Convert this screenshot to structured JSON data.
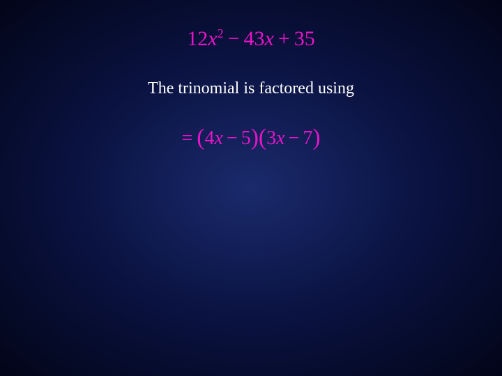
{
  "slide": {
    "background": {
      "gradient_center": "#1a2a6c",
      "gradient_mid": "#0a1240",
      "gradient_edge": "#020518"
    },
    "text_color": "#ffffff",
    "accent_color": "#e815c8",
    "trinomial": {
      "a_coef": "12",
      "a_var": "x",
      "a_exp": "2",
      "op1": "−",
      "b_coef": "43",
      "b_var": "x",
      "op2": "+",
      "c": "35",
      "fontsize": 30
    },
    "caption": {
      "text": "The trinomial is factored using",
      "fontsize": 24
    },
    "factored": {
      "eq": "=",
      "lp1": "(",
      "f1_coef": "4",
      "f1_var": "x",
      "f1_op": "−",
      "f1_const": "5",
      "rp1": ")",
      "lp2": "(",
      "f2_coef": "3",
      "f2_var": "x",
      "f2_op": "−",
      "f2_const": "7",
      "rp2": ")",
      "fontsize": 28
    }
  }
}
